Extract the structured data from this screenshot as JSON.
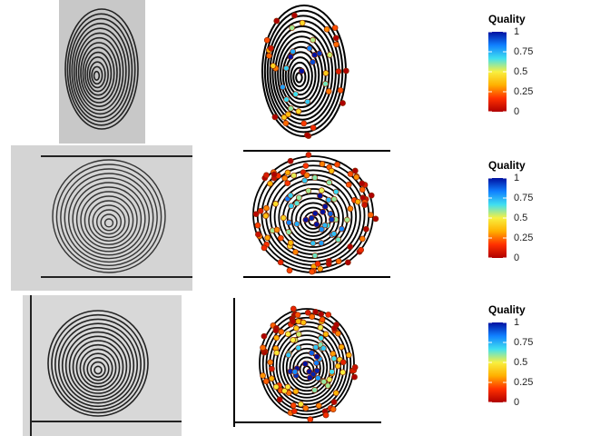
{
  "panels": [
    {
      "legend": {
        "title": "Quality",
        "lim": [
          0,
          1
        ],
        "ticks": [
          1,
          0.75,
          0.5,
          0.25,
          0
        ],
        "colorscale": [
          "#b00000",
          "#ff3000",
          "#ffb000",
          "#f8f040",
          "#40e0f0",
          "#1080ff",
          "#0010a0"
        ]
      }
    },
    {
      "legend": {
        "title": "Quality",
        "lim": [
          0,
          1
        ],
        "ticks": [
          1,
          0.75,
          0.5,
          0.25,
          0
        ],
        "colorscale": [
          "#b00000",
          "#ff3000",
          "#ffb000",
          "#f8f040",
          "#40e0f0",
          "#1080ff",
          "#0010a0"
        ]
      }
    },
    {
      "legend": {
        "title": "Quality",
        "lim": [
          0,
          1
        ],
        "ticks": [
          1,
          0.75,
          0.5,
          0.25,
          0
        ],
        "colorscale": [
          "#b00000",
          "#ff3000",
          "#ffb000",
          "#f8f040",
          "#40e0f0",
          "#1080ff",
          "#0010a0"
        ]
      }
    }
  ]
}
